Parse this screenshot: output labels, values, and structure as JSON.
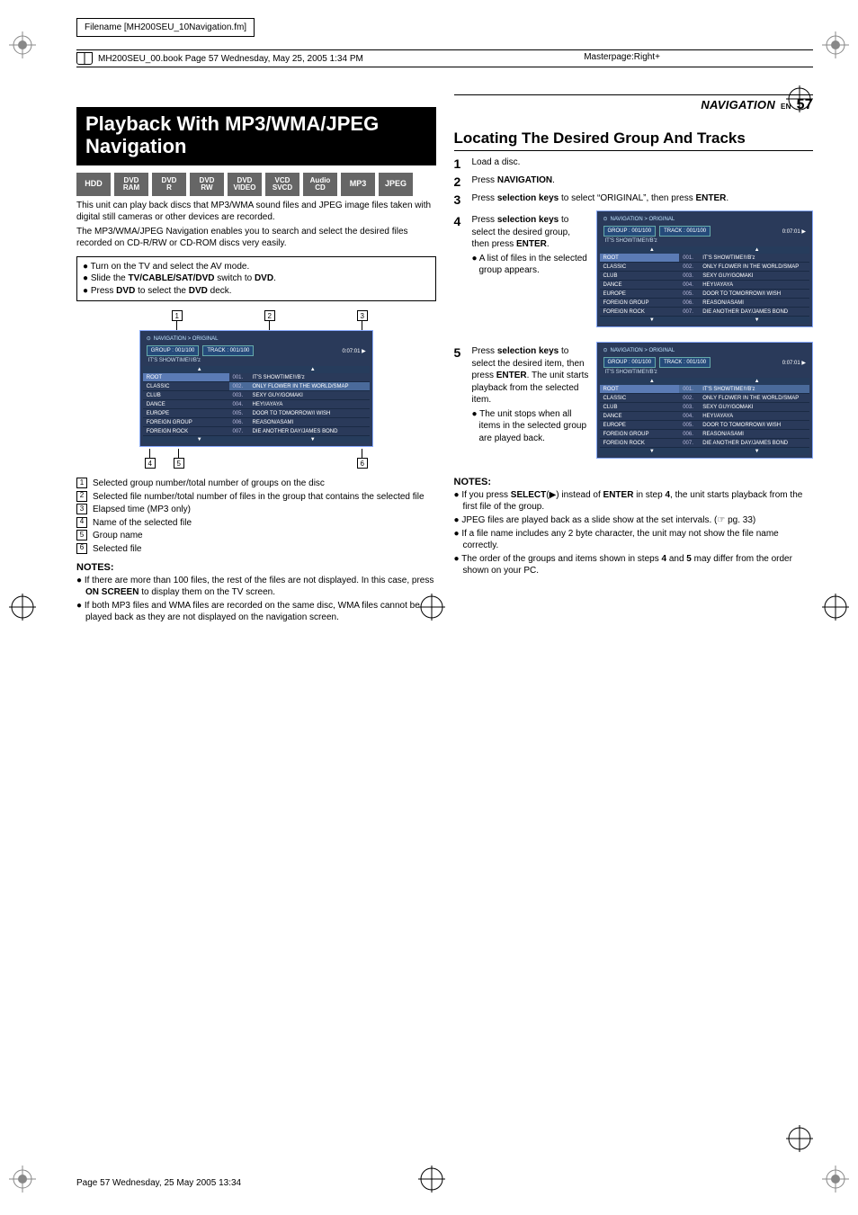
{
  "header": {
    "filename": "Filename [MH200SEU_10Navigation.fm]",
    "book_line": "MH200SEU_00.book  Page 57  Wednesday, May 25, 2005  1:34 PM",
    "masterpage": "Masterpage:Right+",
    "nav_label": "NAVIGATION",
    "en_label": "EN",
    "page_number": "57"
  },
  "footer": "Page 57 Wednesday, 25 May 2005  13:34",
  "colors": {
    "title_bg": "#000000",
    "fmt_bg": "#6b6b6b",
    "osd_bg": "#2a3a5a",
    "osd_hl": "#5b7bb5",
    "osd_border": "#88aaff"
  },
  "left": {
    "title": "Playback With MP3/WMA/JPEG Navigation",
    "formats": [
      {
        "l1": "HDD"
      },
      {
        "l1": "DVD",
        "l2": "RAM"
      },
      {
        "l1": "DVD",
        "l2": "R"
      },
      {
        "l1": "DVD",
        "l2": "RW"
      },
      {
        "l1": "DVD",
        "l2": "VIDEO"
      },
      {
        "l1": "VCD",
        "l2": "SVCD"
      },
      {
        "l1": "Audio",
        "l2": "CD"
      },
      {
        "l1": "MP3"
      },
      {
        "l1": "JPEG"
      }
    ],
    "intro1": "This unit can play back discs that MP3/WMA sound files and JPEG image files taken with digital still cameras or other devices are recorded.",
    "intro2": "The MP3/WMA/JPEG Navigation enables you to search and select the desired files recorded on CD-R/RW or CD-ROM discs very easily.",
    "setup": [
      "Turn on the TV and select the AV mode.",
      "Slide the TV/CABLE/SAT/DVD switch to DVD.",
      "Press DVD to select the DVD deck."
    ],
    "legend": [
      {
        "n": "1",
        "t": "Selected group number/total number of groups on the disc"
      },
      {
        "n": "2",
        "t": "Selected file number/total number of files in the group that contains the selected file"
      },
      {
        "n": "3",
        "t": "Elapsed time (MP3 only)"
      },
      {
        "n": "4",
        "t": "Name of the selected file"
      },
      {
        "n": "5",
        "t": "Group name"
      },
      {
        "n": "6",
        "t": "Selected file"
      }
    ],
    "notes_h": "NOTES:",
    "notes": [
      "If there are more than 100 files, the rest of the files are not displayed. In this case, press ON SCREEN to display them on the TV screen.",
      "If both MP3 files and WMA files are recorded on the same disc, WMA files cannot be played back as they are not displayed on the navigation screen."
    ]
  },
  "right": {
    "title": "Locating The Desired Group And Tracks",
    "steps": [
      {
        "n": "1",
        "t": "Load a disc."
      },
      {
        "n": "2",
        "t": "Press NAVIGATION."
      },
      {
        "n": "3",
        "t": "Press selection keys to select \"ORIGINAL\", then press ENTER."
      }
    ],
    "step4": {
      "n": "4",
      "t": "Press selection keys to select the desired group, then press ENTER.",
      "sub": "A list of files in the selected group appears."
    },
    "step5": {
      "n": "5",
      "t": "Press selection keys to select the desired item, then press ENTER. The unit starts playback from the selected item.",
      "sub": "The unit stops when all items in the selected group are played back."
    },
    "notes_h": "NOTES:",
    "notes": [
      "If you press SELECT(▶) instead of ENTER in step 4, the unit starts playback from the first file of the group.",
      "JPEG files are played back as a slide show at the set intervals. (☞ pg. 33)",
      "If a file name includes any 2 byte character, the unit may not show the file name correctly.",
      "The order of the groups and items shown in steps 4 and 5 may differ from the order shown on your PC."
    ]
  },
  "osd": {
    "crumb": "NAVIGATION > ORIGINAL",
    "group_label": "GROUP : 001/100",
    "track_label": "TRACK : 001/100",
    "time": "0:07:01",
    "subtitle": "IT'S SHOWTIME!!/B'z",
    "groups": [
      "ROOT",
      "CLASSIC",
      "CLUB",
      "DANCE",
      "EUROPE",
      "FOREIGN GROUP",
      "FOREIGN ROCK"
    ],
    "files": [
      {
        "n": "001.",
        "t": "IT'S SHOWTIME!!/B'z"
      },
      {
        "n": "002.",
        "t": "ONLY FLOWER IN THE WORLD/SMAP"
      },
      {
        "n": "003.",
        "t": "SEXY GUY/GOMAKI"
      },
      {
        "n": "004.",
        "t": "HEY!/AYAYA"
      },
      {
        "n": "005.",
        "t": "DOOR TO TOMORROW/I WISH"
      },
      {
        "n": "006.",
        "t": "REASON/ASAMI"
      },
      {
        "n": "007.",
        "t": "DIE ANOTHER DAY/JAMES BOND"
      }
    ],
    "fig1": {
      "group_hl": 0,
      "file_hl": 1
    },
    "fig2": {
      "group_hl": 0,
      "file_hl": -1
    },
    "fig3": {
      "group_hl": 0,
      "file_hl": 0
    }
  }
}
